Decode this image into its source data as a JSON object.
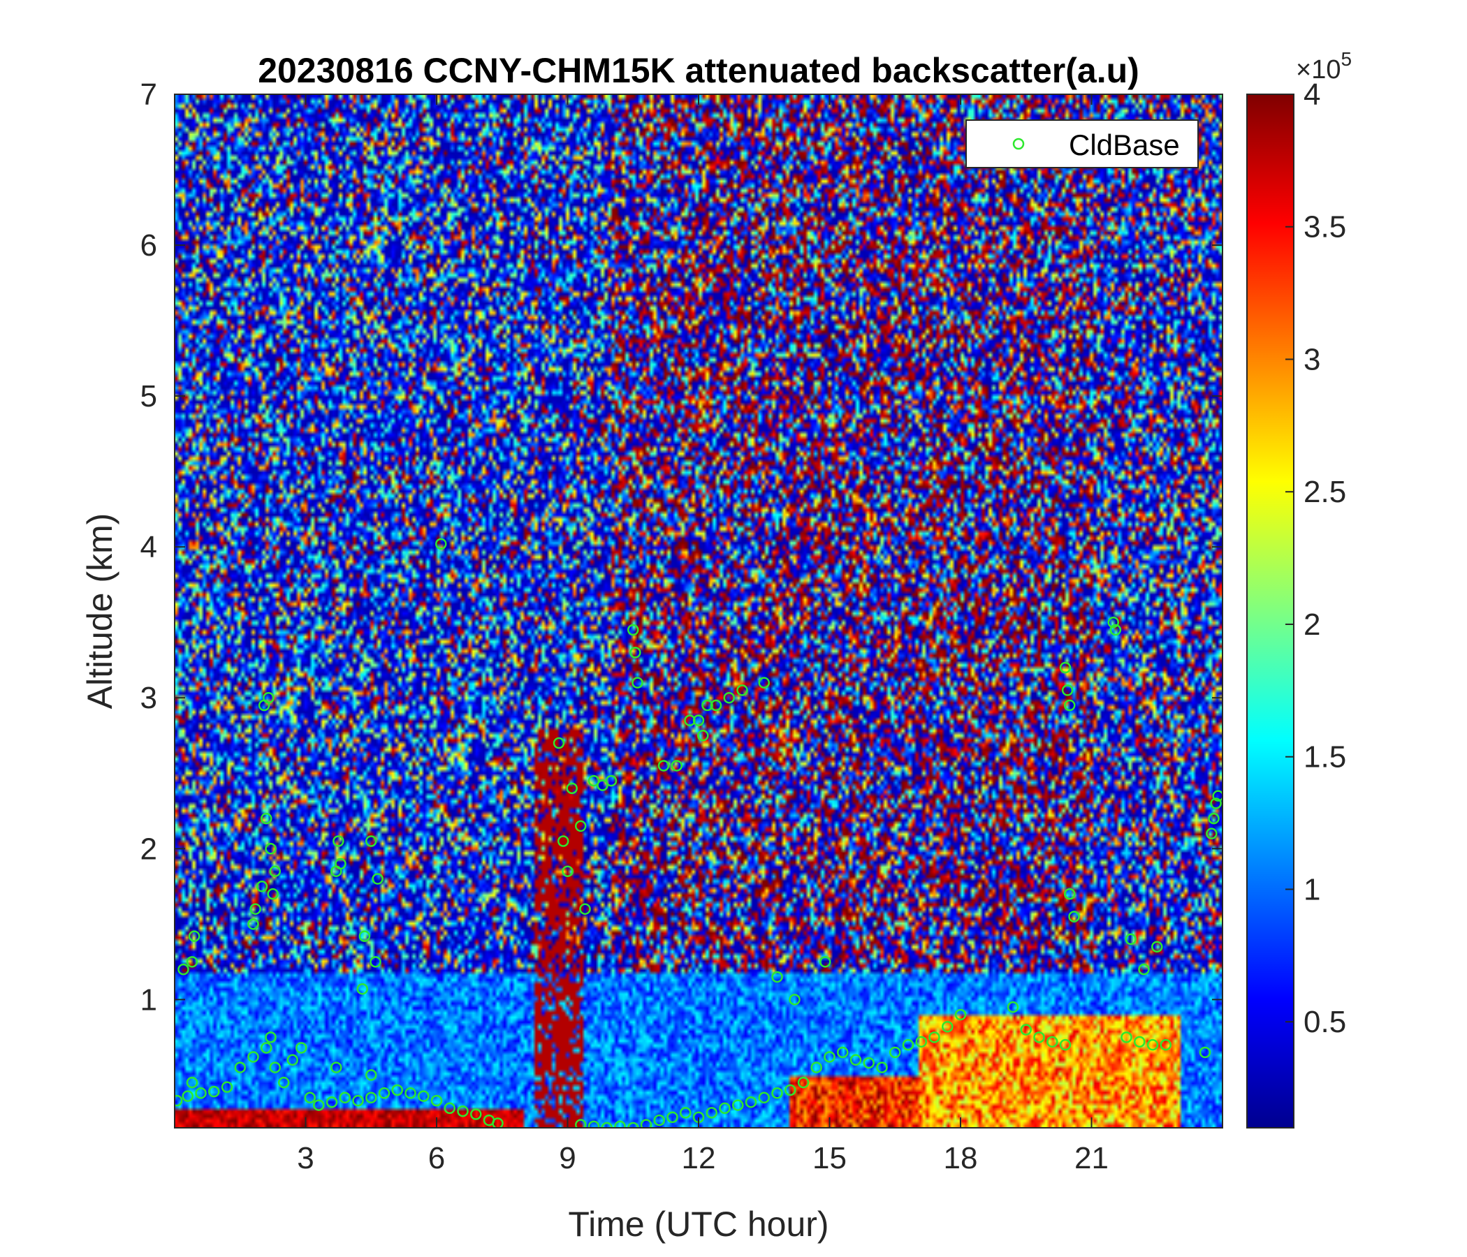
{
  "chart_data": {
    "type": "heatmap",
    "title": "20230816 CCNY-CHM15K attenuated backscatter(a.u)",
    "xlabel": "Time (UTC hour)",
    "ylabel": "Altitude (km)",
    "xlim": [
      0,
      24
    ],
    "ylim": [
      0.15,
      7
    ],
    "x_ticks": [
      3,
      6,
      9,
      12,
      15,
      18,
      21
    ],
    "x_tick_labels": [
      "3",
      "6",
      "9",
      "12",
      "15",
      "18",
      "21"
    ],
    "y_ticks": [
      1,
      2,
      3,
      4,
      5,
      6,
      7
    ],
    "y_tick_labels": [
      "1",
      "2",
      "3",
      "4",
      "5",
      "6",
      "7"
    ],
    "colormap": "jet",
    "colorbar": {
      "range": [
        10000,
        400000
      ],
      "ticks": [
        0.5,
        1,
        1.5,
        2,
        2.5,
        3,
        3.5,
        4
      ],
      "tick_labels": [
        "0.5",
        "1",
        "1.5",
        "2",
        "2.5",
        "3",
        "3.5",
        "4"
      ],
      "exponent_prefix": "×10",
      "exponent": "5"
    },
    "legend": {
      "entries": [
        "CldBase"
      ],
      "placement": "top-right"
    },
    "series": [
      {
        "name": "CldBase",
        "marker": "circle",
        "color": "#2ee82e",
        "x": [
          0.05,
          0.3,
          0.6,
          0.9,
          1.2,
          1.5,
          1.8,
          2.1,
          2.3,
          2.5,
          2.7,
          2.9,
          3.1,
          3.3,
          3.6,
          3.9,
          4.2,
          4.5,
          4.8,
          5.1,
          5.4,
          5.7,
          6.0,
          6.3,
          6.6,
          6.9,
          7.2,
          7.4,
          9.3,
          9.6,
          9.9,
          10.2,
          10.5,
          10.8,
          11.1,
          11.4,
          11.7,
          12.0,
          12.3,
          12.6,
          12.9,
          13.2,
          13.5,
          13.8,
          14.1,
          14.4,
          14.7,
          15.0,
          15.3,
          15.6,
          15.9,
          16.2,
          16.5,
          16.8,
          17.1,
          17.4,
          17.7,
          18.0,
          19.2,
          19.5,
          19.8,
          20.1,
          20.4,
          21.8,
          22.1,
          22.4,
          22.7,
          23.6,
          2.0,
          2.1,
          2.2,
          2.3,
          2.05,
          2.15,
          2.25,
          3.7,
          3.75,
          3.8,
          4.6,
          4.65,
          4.5,
          8.8,
          8.9,
          9.0,
          9.1,
          9.3,
          9.4,
          9.6,
          9.8,
          10.0,
          10.5,
          10.55,
          10.6,
          11.2,
          11.5,
          11.8,
          12.1,
          12.4,
          12.7,
          13.0,
          13.5,
          12.0,
          12.2,
          20.4,
          20.45,
          20.5,
          21.5,
          21.55,
          23.75,
          23.8,
          23.85,
          23.9,
          6.1,
          0.2,
          0.4,
          0.45,
          1.8,
          1.85,
          4.3,
          4.35,
          13.8,
          14.2,
          14.9,
          20.5,
          20.6,
          21.9,
          22.2,
          22.5,
          0.4,
          2.2,
          3.7,
          4.5
        ],
        "y": [
          0.33,
          0.36,
          0.38,
          0.39,
          0.42,
          0.55,
          0.62,
          0.68,
          0.55,
          0.45,
          0.6,
          0.68,
          0.35,
          0.3,
          0.32,
          0.35,
          0.33,
          0.35,
          0.38,
          0.4,
          0.38,
          0.36,
          0.33,
          0.28,
          0.26,
          0.24,
          0.2,
          0.18,
          0.17,
          0.16,
          0.15,
          0.16,
          0.15,
          0.17,
          0.2,
          0.22,
          0.25,
          0.22,
          0.25,
          0.28,
          0.3,
          0.32,
          0.35,
          0.38,
          0.4,
          0.45,
          0.55,
          0.62,
          0.65,
          0.6,
          0.58,
          0.55,
          0.65,
          0.7,
          0.72,
          0.75,
          0.82,
          0.9,
          0.95,
          0.8,
          0.75,
          0.72,
          0.7,
          0.75,
          0.72,
          0.7,
          0.7,
          0.65,
          1.75,
          2.2,
          2.0,
          1.85,
          2.95,
          3.0,
          1.7,
          1.85,
          2.05,
          1.9,
          1.25,
          1.8,
          2.05,
          2.7,
          2.05,
          1.85,
          2.4,
          2.15,
          1.6,
          2.45,
          2.42,
          2.45,
          3.45,
          3.3,
          3.1,
          2.55,
          2.55,
          2.85,
          2.75,
          2.95,
          3.0,
          3.05,
          3.1,
          2.85,
          2.95,
          3.2,
          3.05,
          2.95,
          3.5,
          3.45,
          2.1,
          2.2,
          2.3,
          2.35,
          4.02,
          1.2,
          1.25,
          1.42,
          1.5,
          1.6,
          1.07,
          1.42,
          1.15,
          1.0,
          1.25,
          1.7,
          1.55,
          1.4,
          1.2,
          1.35,
          0.45,
          0.75,
          0.55,
          0.5
        ]
      }
    ]
  }
}
